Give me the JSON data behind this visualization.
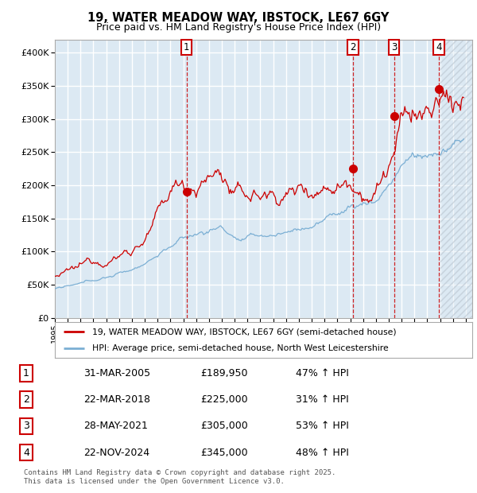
{
  "title": "19, WATER MEADOW WAY, IBSTOCK, LE67 6GY",
  "subtitle": "Price paid vs. HM Land Registry's House Price Index (HPI)",
  "ylim": [
    0,
    420000
  ],
  "yticks": [
    0,
    50000,
    100000,
    150000,
    200000,
    250000,
    300000,
    350000,
    400000
  ],
  "xlim_start": 1995.0,
  "xlim_end": 2027.5,
  "hatch_start": 2025.0,
  "plot_bg_color": "#dce9f3",
  "grid_color": "#ffffff",
  "red_line_color": "#cc0000",
  "blue_line_color": "#7bafd4",
  "sale_dates": [
    2005.25,
    2018.22,
    2021.42,
    2024.9
  ],
  "sale_prices": [
    189950,
    225000,
    305000,
    345000
  ],
  "sale_labels": [
    "1",
    "2",
    "3",
    "4"
  ],
  "footer_text": "Contains HM Land Registry data © Crown copyright and database right 2025.\nThis data is licensed under the Open Government Licence v3.0.",
  "legend_red": "19, WATER MEADOW WAY, IBSTOCK, LE67 6GY (semi-detached house)",
  "legend_blue": "HPI: Average price, semi-detached house, North West Leicestershire",
  "table_rows": [
    [
      "1",
      "31-MAR-2005",
      "£189,950",
      "47% ↑ HPI"
    ],
    [
      "2",
      "22-MAR-2018",
      "£225,000",
      "31% ↑ HPI"
    ],
    [
      "3",
      "28-MAY-2021",
      "£305,000",
      "53% ↑ HPI"
    ],
    [
      "4",
      "22-NOV-2024",
      "£345,000",
      "48% ↑ HPI"
    ]
  ]
}
